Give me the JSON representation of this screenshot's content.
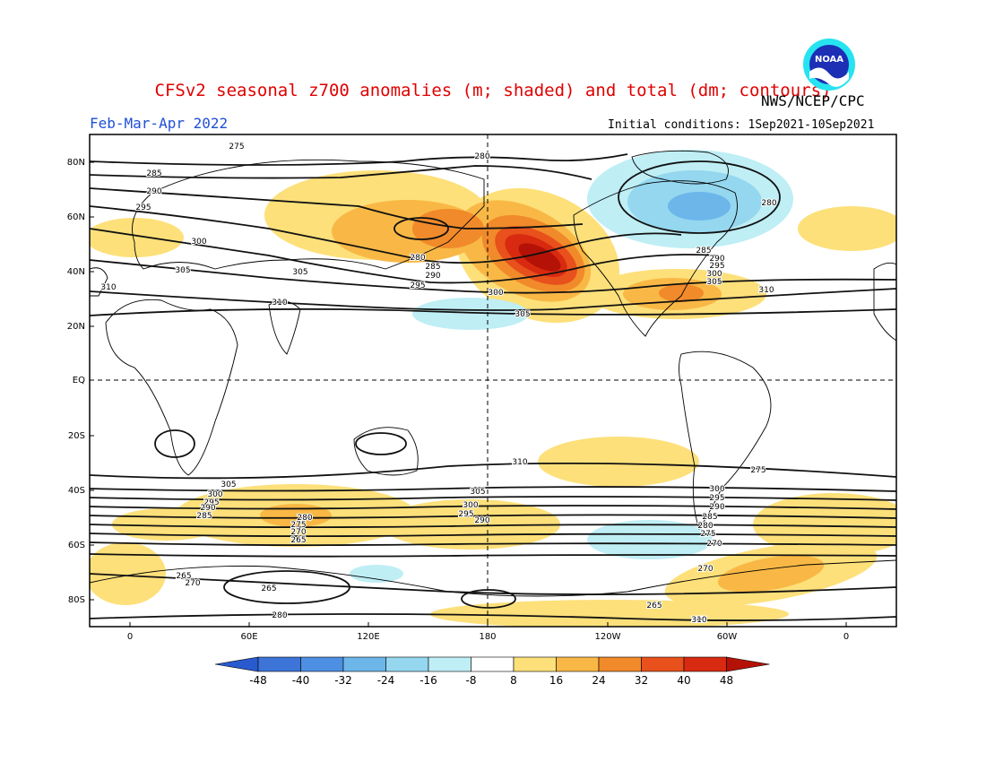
{
  "header": {
    "title": "CFSv2 seasonal z700 anomalies (m; shaded) and total (dm; contours)",
    "period": "Feb-Mar-Apr 2022",
    "agency": "NWS/NCEP/CPC",
    "initial_conditions": "Initial conditions: 1Sep2021-10Sep2021",
    "logo_text": "NOAA"
  },
  "map": {
    "lat_labels": [
      "80N",
      "60N",
      "40N",
      "20N",
      "EQ",
      "20S",
      "40S",
      "60S",
      "80S"
    ],
    "lon_labels": [
      "0",
      "60E",
      "120E",
      "180",
      "120W",
      "60W",
      "0"
    ],
    "contour_labels": [
      "280",
      "285",
      "290",
      "295",
      "300",
      "305",
      "310",
      "275",
      "280",
      "285",
      "290",
      "295",
      "300",
      "305",
      "310",
      "280",
      "285",
      "290",
      "295",
      "300",
      "305",
      "310",
      "305",
      "300",
      "295",
      "290",
      "285",
      "280",
      "275",
      "270",
      "265",
      "270",
      "265",
      "270",
      "265",
      "310",
      "305",
      "300",
      "295",
      "290",
      "285",
      "280",
      "275",
      "270",
      "265",
      "305",
      "300",
      "295",
      "290",
      "285",
      "280",
      "275",
      "270",
      "265",
      "310",
      "305",
      "310"
    ],
    "colors": {
      "pos8": "#fde07a",
      "pos16": "#f9b845",
      "pos24": "#f18a2a",
      "pos32": "#e8501c",
      "pos40": "#d82a10",
      "pos48": "#b41206",
      "neg8": "#bfeef5",
      "neg16": "#94d7ef",
      "neg24": "#6cb6ea",
      "neg32": "#4d8fe2",
      "neg40": "#3c74d8",
      "neg48": "#2a5ad0"
    }
  },
  "colorbar": {
    "ticks": [
      "-48",
      "-40",
      "-32",
      "-24",
      "-16",
      "-8",
      "8",
      "16",
      "24",
      "32",
      "40",
      "48"
    ],
    "colors": [
      "#2a5ad0",
      "#3c74d8",
      "#4d8fe2",
      "#6cb6ea",
      "#94d7ef",
      "#bfeef5",
      "#ffffff",
      "#fde07a",
      "#f9b845",
      "#f18a2a",
      "#e8501c",
      "#d82a10",
      "#b41206"
    ]
  }
}
